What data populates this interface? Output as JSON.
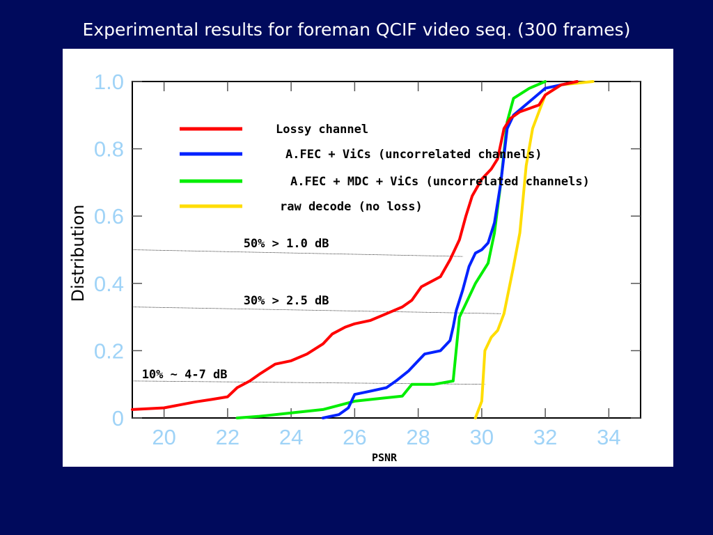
{
  "slide": {
    "title": "Experimental results for foreman QCIF video seq. (300 frames)"
  },
  "chart_data": {
    "type": "line",
    "title": "",
    "xlabel": "PSNR",
    "ylabel": "Distribution",
    "xlim": [
      19,
      35
    ],
    "ylim": [
      0,
      1
    ],
    "x_ticks": [
      20,
      22,
      24,
      26,
      28,
      30,
      32,
      34
    ],
    "y_ticks": [
      0,
      0.2,
      0.4,
      0.6,
      0.8,
      1.0
    ],
    "y_tick_labels": [
      "0",
      "0.2",
      "0.4",
      "0.6",
      "0.8",
      "1.0"
    ],
    "grid": false,
    "legend_position": "top-left",
    "series": [
      {
        "name": "Lossy channel",
        "color": "#ff0000",
        "points": [
          [
            19,
            0.025
          ],
          [
            20,
            0.03
          ],
          [
            21,
            0.048
          ],
          [
            21.5,
            0.055
          ],
          [
            22,
            0.063
          ],
          [
            22.3,
            0.09
          ],
          [
            22.7,
            0.11
          ],
          [
            23,
            0.13
          ],
          [
            23.5,
            0.16
          ],
          [
            24,
            0.17
          ],
          [
            24.5,
            0.19
          ],
          [
            25,
            0.22
          ],
          [
            25.3,
            0.25
          ],
          [
            25.7,
            0.27
          ],
          [
            26,
            0.28
          ],
          [
            26.5,
            0.29
          ],
          [
            27,
            0.31
          ],
          [
            27.5,
            0.33
          ],
          [
            27.8,
            0.35
          ],
          [
            28.1,
            0.39
          ],
          [
            28.3,
            0.4
          ],
          [
            28.7,
            0.42
          ],
          [
            29,
            0.47
          ],
          [
            29.3,
            0.53
          ],
          [
            29.5,
            0.6
          ],
          [
            29.7,
            0.66
          ],
          [
            30,
            0.71
          ],
          [
            30.3,
            0.74
          ],
          [
            30.5,
            0.77
          ],
          [
            30.7,
            0.86
          ],
          [
            30.9,
            0.89
          ],
          [
            31.2,
            0.91
          ],
          [
            31.8,
            0.93
          ],
          [
            32,
            0.96
          ],
          [
            32.5,
            0.99
          ],
          [
            33,
            1.0
          ]
        ]
      },
      {
        "name": "A.FEC + ViCs (uncorrelated channels)",
        "color": "#0022ff",
        "points": [
          [
            25,
            0.0
          ],
          [
            25.5,
            0.01
          ],
          [
            25.8,
            0.03
          ],
          [
            26,
            0.07
          ],
          [
            26.5,
            0.08
          ],
          [
            27,
            0.09
          ],
          [
            27.3,
            0.11
          ],
          [
            27.7,
            0.14
          ],
          [
            28,
            0.17
          ],
          [
            28.2,
            0.19
          ],
          [
            28.7,
            0.2
          ],
          [
            29,
            0.23
          ],
          [
            29.1,
            0.27
          ],
          [
            29.2,
            0.32
          ],
          [
            29.4,
            0.38
          ],
          [
            29.6,
            0.45
          ],
          [
            29.8,
            0.49
          ],
          [
            30,
            0.5
          ],
          [
            30.2,
            0.52
          ],
          [
            30.4,
            0.58
          ],
          [
            30.6,
            0.7
          ],
          [
            30.8,
            0.86
          ],
          [
            31,
            0.9
          ],
          [
            31.5,
            0.94
          ],
          [
            32,
            0.98
          ],
          [
            33,
            1.0
          ]
        ]
      },
      {
        "name": "A.FEC + MDC + ViCs (uncorrelated channels)",
        "color": "#00ee00",
        "points": [
          [
            22.3,
            0.0
          ],
          [
            23,
            0.005
          ],
          [
            24,
            0.015
          ],
          [
            25,
            0.025
          ],
          [
            26,
            0.05
          ],
          [
            27,
            0.06
          ],
          [
            27.5,
            0.065
          ],
          [
            27.8,
            0.1
          ],
          [
            28.5,
            0.1
          ],
          [
            29.1,
            0.11
          ],
          [
            29.3,
            0.3
          ],
          [
            29.5,
            0.34
          ],
          [
            29.8,
            0.4
          ],
          [
            30,
            0.43
          ],
          [
            30.2,
            0.46
          ],
          [
            30.4,
            0.55
          ],
          [
            30.6,
            0.7
          ],
          [
            30.8,
            0.88
          ],
          [
            31,
            0.95
          ],
          [
            31.5,
            0.98
          ],
          [
            32,
            1.0
          ]
        ]
      },
      {
        "name": "raw decode (no loss)",
        "color": "#ffdd00",
        "points": [
          [
            29.8,
            0.0
          ],
          [
            30,
            0.05
          ],
          [
            30.1,
            0.2
          ],
          [
            30.3,
            0.24
          ],
          [
            30.5,
            0.26
          ],
          [
            30.7,
            0.31
          ],
          [
            31,
            0.45
          ],
          [
            31.2,
            0.55
          ],
          [
            31.4,
            0.75
          ],
          [
            31.6,
            0.86
          ],
          [
            32,
            0.96
          ],
          [
            32.5,
            0.99
          ],
          [
            33.5,
            1.0
          ]
        ]
      }
    ],
    "annotations": [
      {
        "text": "50% > 1.0 dB",
        "line_x": [
          19,
          29.4
        ],
        "line_y": [
          0.5,
          0.48
        ],
        "label_x": 22.5,
        "label_y": 0.52
      },
      {
        "text": "30% > 2.5 dB",
        "line_x": [
          19,
          30.6
        ],
        "line_y": [
          0.33,
          0.31
        ],
        "label_x": 22.5,
        "label_y": 0.35
      },
      {
        "text": "10% ~ 4-7 dB",
        "line_x": [
          19,
          30.1
        ],
        "line_y": [
          0.11,
          0.1
        ],
        "label_x": 19.3,
        "label_y": 0.13
      }
    ]
  }
}
